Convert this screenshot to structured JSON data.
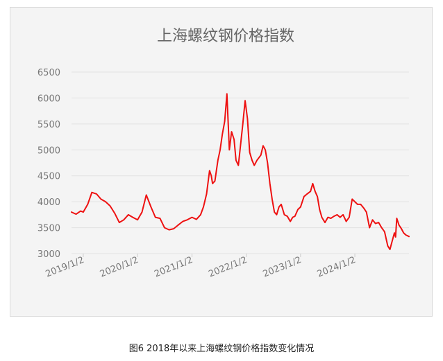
{
  "colors": {
    "line": "#ee1111",
    "panel": "#f4f4f4",
    "grid": "#e2e2e2",
    "axis_text": "#777777",
    "title": "#666666"
  },
  "caption": "图6 2018年以来上海螺纹钢价格指数变化情况",
  "chart_data": {
    "type": "line",
    "title": "上海螺纹钢价格指数",
    "xlabel": "",
    "ylabel": "",
    "ylim": [
      3000,
      6500
    ],
    "yticks": [
      3000,
      3500,
      4000,
      4500,
      5000,
      5500,
      6000,
      6500
    ],
    "xticks": [
      "2019/1/2",
      "2020/1/2",
      "2021/1/2",
      "2022/1/2",
      "2023/1/2",
      "2024/1/2"
    ],
    "xlim": [
      "2018-10-15",
      "2024-12-31"
    ],
    "grid": true,
    "legend": "none",
    "series": [
      {
        "x": [
          "2018-10-15",
          "2018-11-15",
          "2018-12-15",
          "2019-01-02",
          "2019-02-01",
          "2019-03-01",
          "2019-04-01",
          "2019-05-01",
          "2019-06-01",
          "2019-07-01",
          "2019-08-01",
          "2019-09-01",
          "2019-10-01",
          "2019-11-01",
          "2019-12-01",
          "2020-01-02",
          "2020-02-01",
          "2020-03-01",
          "2020-04-01",
          "2020-05-01",
          "2020-06-01",
          "2020-07-01",
          "2020-08-01",
          "2020-09-01",
          "2020-10-01",
          "2020-11-01",
          "2020-12-01",
          "2021-01-02",
          "2021-02-01",
          "2021-03-01",
          "2021-03-20",
          "2021-04-10",
          "2021-04-30",
          "2021-05-12",
          "2021-05-20",
          "2021-06-05",
          "2021-06-25",
          "2021-07-10",
          "2021-07-25",
          "2021-08-10",
          "2021-08-25",
          "2021-09-10",
          "2021-09-25",
          "2021-10-12",
          "2021-10-25",
          "2021-11-10",
          "2021-11-25",
          "2021-12-10",
          "2021-12-25",
          "2022-01-10",
          "2022-01-25",
          "2022-02-10",
          "2022-02-25",
          "2022-03-15",
          "2022-04-10",
          "2022-04-25",
          "2022-05-10",
          "2022-05-25",
          "2022-06-10",
          "2022-06-25",
          "2022-07-10",
          "2022-07-25",
          "2022-08-10",
          "2022-08-25",
          "2022-09-15",
          "2022-10-05",
          "2022-10-25",
          "2022-11-10",
          "2022-11-25",
          "2022-12-15",
          "2023-01-02",
          "2023-01-25",
          "2023-02-15",
          "2023-03-10",
          "2023-03-25",
          "2023-04-10",
          "2023-04-25",
          "2023-05-10",
          "2023-05-25",
          "2023-06-15",
          "2023-07-05",
          "2023-07-25",
          "2023-08-15",
          "2023-09-05",
          "2023-09-25",
          "2023-10-15",
          "2023-11-05",
          "2023-11-25",
          "2023-12-15",
          "2024-01-02",
          "2024-01-20",
          "2024-02-10",
          "2024-03-01",
          "2024-03-20",
          "2024-04-10",
          "2024-04-30",
          "2024-05-20",
          "2024-06-10",
          "2024-06-30",
          "2024-07-20",
          "2024-08-10",
          "2024-08-25",
          "2024-09-10",
          "2024-09-24",
          "2024-10-02",
          "2024-10-10",
          "2024-10-25",
          "2024-11-10",
          "2024-11-25",
          "2024-12-10",
          "2024-12-31"
        ],
        "values": [
          3800,
          3760,
          3820,
          3800,
          3950,
          4180,
          4150,
          4050,
          4000,
          3920,
          3780,
          3600,
          3650,
          3750,
          3700,
          3650,
          3800,
          4130,
          3900,
          3700,
          3680,
          3500,
          3460,
          3480,
          3550,
          3620,
          3650,
          3700,
          3660,
          3750,
          3900,
          4150,
          4600,
          4500,
          4350,
          4400,
          4800,
          5000,
          5300,
          5550,
          6080,
          5000,
          5350,
          5200,
          4800,
          4700,
          5100,
          5500,
          5950,
          5600,
          4950,
          4800,
          4700,
          4800,
          4900,
          5080,
          5000,
          4750,
          4350,
          4050,
          3800,
          3750,
          3900,
          3950,
          3750,
          3720,
          3620,
          3700,
          3720,
          3850,
          3900,
          4100,
          4150,
          4200,
          4350,
          4200,
          4100,
          3850,
          3700,
          3600,
          3700,
          3680,
          3720,
          3750,
          3700,
          3750,
          3620,
          3700,
          4050,
          4000,
          3950,
          3950,
          3880,
          3800,
          3500,
          3650,
          3580,
          3600,
          3500,
          3420,
          3150,
          3080,
          3250,
          3400,
          3320,
          3680,
          3550,
          3480,
          3400,
          3360,
          3330
        ]
      }
    ]
  }
}
